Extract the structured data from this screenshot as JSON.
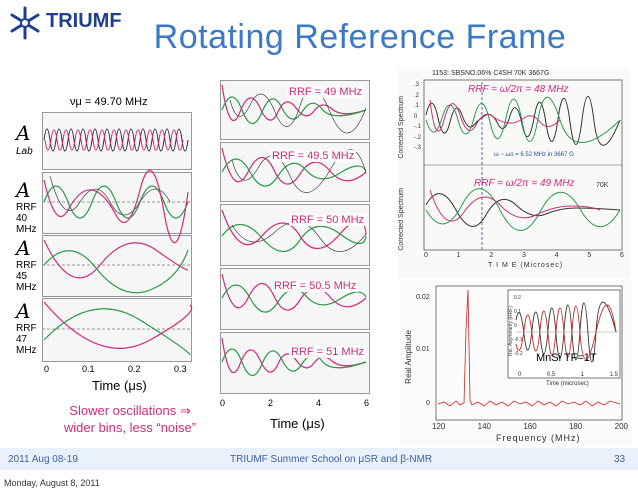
{
  "slide": {
    "title": "Rotating Reference Frame",
    "logo_text": "TRIUMF",
    "nu_mu_label": "νμ = 49.70 MHz",
    "frame_symbol": "A",
    "frame_labels": [
      "Lab",
      "RRF\n40\nMHz",
      "RRF\n45\nMHz",
      "RRF\n47\nMHz"
    ],
    "left_x_ticks": [
      "0",
      "0.1",
      "0.2",
      "0.3"
    ],
    "left_xlabel": "Time (μs)",
    "mid_rrf_labels": [
      "RRF = 49 MHz",
      "RRF = 49.5 MHz",
      "RRF = 50 MHz",
      "RRF = 50.5 MHz",
      "RRF = 51 MHz"
    ],
    "mid_x_ticks": [
      "0",
      "2",
      "4",
      "6"
    ],
    "mid_xlabel": "Time (μs)",
    "caption_line1": "Slower oscillations ⇒",
    "caption_line2": "wider bins, less “noise”",
    "right_top_header": "1153: SBSNO.06% C4SH 70K 3667G",
    "right_top_rrf1": "RRF = ω/2π = 48 MHz",
    "right_top_rrf2": "RRF = ω/2π = 49 MHz",
    "right_top_note": "ω − ωo = 6.52 MHz in 3667 G",
    "right_top_temp": "70K",
    "right_top_ylabel": "Corrected Spectrum",
    "right_top_yticks": [
      ".3",
      ".2",
      ".1",
      "0",
      "-.1",
      "-.2",
      "-.3"
    ],
    "right_top_xticks": [
      "0",
      "1",
      "2",
      "3",
      "4",
      "5",
      "6"
    ],
    "right_top_xlabel": "T I M E  (Microsec)",
    "right_bottom_ylabel": "Real Amplitude",
    "right_bottom_yticks": [
      "0.02",
      "0.01",
      "0"
    ],
    "right_bottom_xticks": [
      "120",
      "140",
      "160",
      "180",
      "200"
    ],
    "right_bottom_xlabel": "Frequency (MHz)",
    "inset_ylabel": "Rel. Asymmetry (RRF)",
    "inset_yticks": [
      "0.2",
      "0.1",
      "0",
      "-0.1",
      "-0.2"
    ],
    "inset_xticks": [
      "0",
      "0.5",
      "1",
      "1.5"
    ],
    "inset_xlabel": "Time (microsec)",
    "inset_tag": "MnSi TF=1T"
  },
  "footer": {
    "date": "2011 Aug 08-19",
    "school": "TRIUMF Summer School on μSR and β-NMR",
    "page": "33"
  },
  "bottom_note": "Monday, August 8, 2011",
  "colors": {
    "title": "#3c78c8",
    "pink": "#d5297a",
    "green": "#2a9a4a",
    "dark": "#333333"
  }
}
